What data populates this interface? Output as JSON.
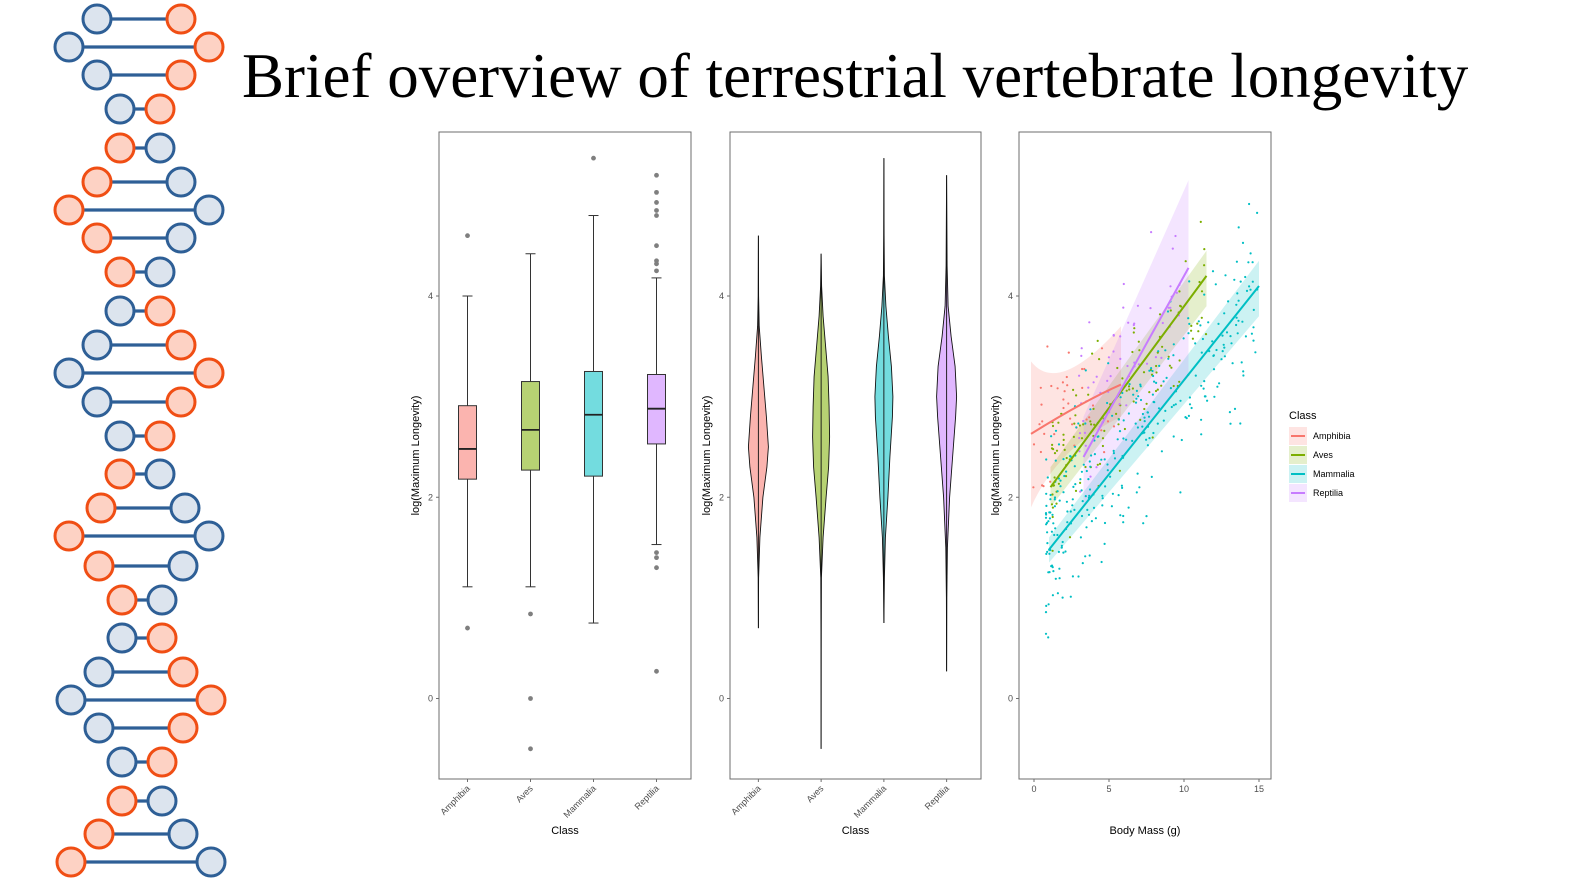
{
  "title": "Brief overview of terrestrial vertebrate longevity",
  "decoration": {
    "icon": "dna-helix-icon",
    "colors": {
      "blue_stroke": "#2e5f96",
      "blue_fill": "#dce4ee",
      "orange_stroke": "#f04e14",
      "orange_fill": "#fdd2c4"
    }
  },
  "palette": {
    "Amphibia": "#F8766D",
    "Aves": "#7CAE00",
    "Mammalia": "#00BFC4",
    "Reptilia": "#C77CFF"
  },
  "chart_data": [
    {
      "type": "boxplot",
      "title": "",
      "xlabel": "Class",
      "ylabel": "log(Maximum Longevity)",
      "categories": [
        "Amphibia",
        "Aves",
        "Mammalia",
        "Reptilia"
      ],
      "ylim": [
        -0.8,
        5.63
      ],
      "yticks": [
        0,
        2,
        4
      ],
      "grid": false,
      "boxes": [
        {
          "name": "Amphibia",
          "whisker_low": 1.11,
          "q1": 2.18,
          "median": 2.48,
          "q3": 2.91,
          "whisker_high": 4.0,
          "outliers": [
            4.6,
            0.7
          ]
        },
        {
          "name": "Aves",
          "whisker_low": 1.11,
          "q1": 2.27,
          "median": 2.67,
          "q3": 3.15,
          "whisker_high": 4.42,
          "outliers": [
            0.84,
            0.0,
            -0.5
          ]
        },
        {
          "name": "Mammalia",
          "whisker_low": 0.75,
          "q1": 2.21,
          "median": 2.82,
          "q3": 3.25,
          "whisker_high": 4.8,
          "outliers": [
            5.37
          ]
        },
        {
          "name": "Reptilia",
          "whisker_low": 1.53,
          "q1": 2.53,
          "median": 2.88,
          "q3": 3.22,
          "whisker_high": 4.18,
          "outliers": [
            5.2,
            5.03,
            4.93,
            4.85,
            4.8,
            4.5,
            4.35,
            4.32,
            4.25,
            1.45,
            1.4,
            1.3,
            0.27
          ]
        }
      ]
    },
    {
      "type": "violin",
      "title": "",
      "xlabel": "Class",
      "ylabel": "log(Maximum Longevity)",
      "categories": [
        "Amphibia",
        "Aves",
        "Mammalia",
        "Reptilia"
      ],
      "ylim": [
        -0.8,
        5.63
      ],
      "yticks": [
        0,
        2,
        4
      ],
      "grid": false,
      "violins": [
        {
          "name": "Amphibia",
          "min": 0.7,
          "max": 4.6,
          "profile": [
            [
              0.7,
              0
            ],
            [
              1.2,
              0.02
            ],
            [
              1.6,
              0.15
            ],
            [
              2.0,
              0.45
            ],
            [
              2.3,
              0.85
            ],
            [
              2.5,
              1.0
            ],
            [
              2.8,
              0.8
            ],
            [
              3.1,
              0.55
            ],
            [
              3.4,
              0.3
            ],
            [
              3.7,
              0.08
            ],
            [
              4.0,
              0.02
            ],
            [
              4.6,
              0
            ]
          ]
        },
        {
          "name": "Aves",
          "min": -0.5,
          "max": 4.42,
          "profile": [
            [
              -0.5,
              0
            ],
            [
              0.5,
              0.01
            ],
            [
              1.2,
              0.03
            ],
            [
              1.6,
              0.2
            ],
            [
              2.0,
              0.5
            ],
            [
              2.3,
              0.75
            ],
            [
              2.6,
              0.85
            ],
            [
              2.9,
              0.8
            ],
            [
              3.2,
              0.7
            ],
            [
              3.5,
              0.45
            ],
            [
              3.8,
              0.2
            ],
            [
              4.1,
              0.05
            ],
            [
              4.42,
              0
            ]
          ]
        },
        {
          "name": "Mammalia",
          "min": 0.75,
          "max": 5.37,
          "profile": [
            [
              0.75,
              0
            ],
            [
              1.2,
              0.05
            ],
            [
              1.6,
              0.15
            ],
            [
              2.0,
              0.4
            ],
            [
              2.4,
              0.6
            ],
            [
              2.8,
              0.85
            ],
            [
              3.0,
              0.9
            ],
            [
              3.3,
              0.75
            ],
            [
              3.6,
              0.45
            ],
            [
              3.9,
              0.2
            ],
            [
              4.2,
              0.05
            ],
            [
              4.6,
              0.02
            ],
            [
              5.37,
              0
            ]
          ]
        },
        {
          "name": "Reptilia",
          "min": 0.27,
          "max": 5.2,
          "profile": [
            [
              0.27,
              0
            ],
            [
              1.0,
              0.02
            ],
            [
              1.5,
              0.08
            ],
            [
              2.0,
              0.3
            ],
            [
              2.4,
              0.6
            ],
            [
              2.8,
              0.9
            ],
            [
              3.0,
              1.0
            ],
            [
              3.3,
              0.85
            ],
            [
              3.6,
              0.45
            ],
            [
              3.9,
              0.15
            ],
            [
              4.3,
              0.05
            ],
            [
              5.2,
              0
            ]
          ]
        }
      ]
    },
    {
      "type": "scatter",
      "title": "",
      "xlabel": "Body Mass (g)",
      "ylabel": "log(Maximum Longevity)",
      "xlim": [
        -1,
        15.8
      ],
      "ylim": [
        -0.8,
        5.63
      ],
      "xticks": [
        0,
        5,
        10,
        15
      ],
      "yticks": [
        0,
        2,
        4
      ],
      "grid": false,
      "legend": {
        "title": "Class",
        "position": "right",
        "entries": [
          "Amphibia",
          "Aves",
          "Mammalia",
          "Reptilia"
        ]
      },
      "fits": [
        {
          "name": "Amphibia",
          "x": [
            -0.2,
            5.8
          ],
          "y": [
            2.63,
            3.12
          ],
          "ci_low": [
            1.9,
            2.8
          ],
          "ci_high": [
            3.35,
            3.7
          ],
          "ci_mid": [
            2.5,
            2.8,
            3.0
          ]
        },
        {
          "name": "Aves",
          "x": [
            1.1,
            11.5
          ],
          "y": [
            2.1,
            4.2
          ],
          "ci_low": [
            1.9,
            3.9
          ],
          "ci_high": [
            2.3,
            4.45
          ]
        },
        {
          "name": "Mammalia",
          "x": [
            1.0,
            15.0
          ],
          "y": [
            1.48,
            4.1
          ],
          "ci_low": [
            1.35,
            3.8
          ],
          "ci_high": [
            1.6,
            4.35
          ]
        },
        {
          "name": "Reptilia",
          "x": [
            3.3,
            10.3
          ],
          "y": [
            2.4,
            4.28
          ],
          "ci_low": [
            1.9,
            3.2
          ],
          "ci_high": [
            2.8,
            5.15
          ]
        }
      ],
      "point_clouds": [
        {
          "name": "Amphibia",
          "count": 40,
          "x_range": [
            -0.2,
            6.5
          ],
          "center_y": [
            2.6,
            3.2
          ],
          "spread": 0.35
        },
        {
          "name": "Aves",
          "count": 120,
          "x_range": [
            1.2,
            11.5
          ],
          "center_y": [
            2.2,
            4.0
          ],
          "spread": 0.35
        },
        {
          "name": "Mammalia",
          "count": 320,
          "x_range": [
            0.8,
            15.0
          ],
          "center_y": [
            1.6,
            4.1
          ],
          "spread": 0.45
        },
        {
          "name": "Reptilia",
          "count": 60,
          "x_range": [
            3.0,
            10.0
          ],
          "center_y": [
            2.6,
            4.2
          ],
          "spread": 0.4
        }
      ]
    }
  ]
}
